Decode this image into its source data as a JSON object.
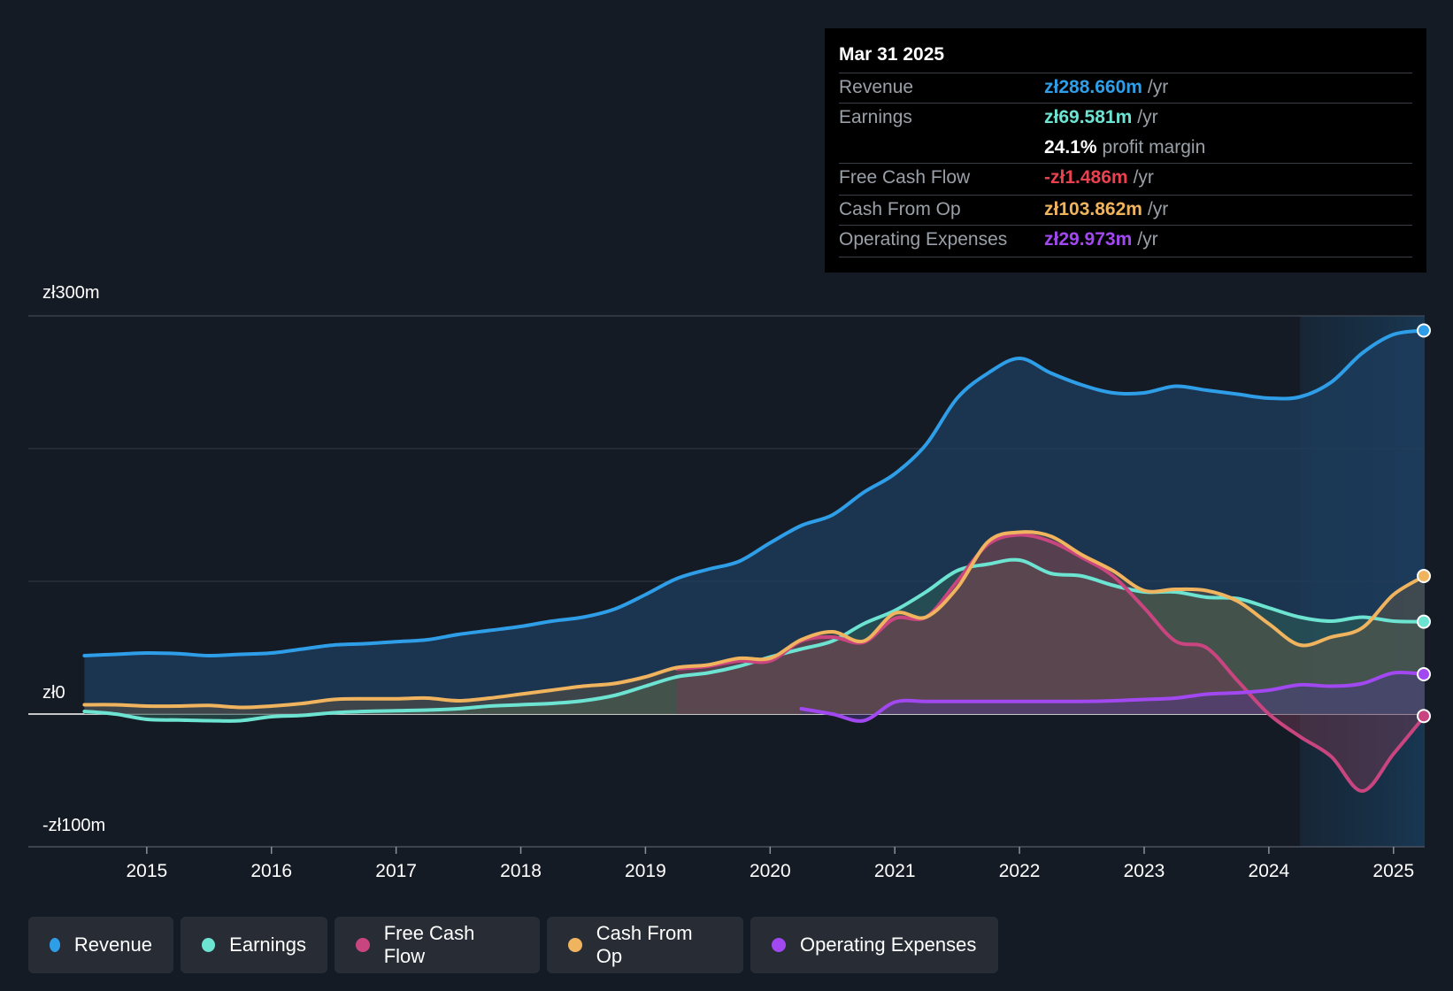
{
  "tooltip": {
    "date": "Mar 31 2025",
    "rows": [
      {
        "label": "Revenue",
        "value": "zł288.660m",
        "unit": "/yr",
        "color": "#2f9ee8"
      },
      {
        "label": "Earnings",
        "value": "zł69.581m",
        "unit": "/yr",
        "color": "#6de3d2"
      },
      {
        "label": "",
        "value": "24.1%",
        "unit": "profit margin",
        "color": "#ffffff"
      },
      {
        "label": "Free Cash Flow",
        "value": "-zł1.486m",
        "unit": "/yr",
        "color": "#e8414f"
      },
      {
        "label": "Cash From Op",
        "value": "zł103.862m",
        "unit": "/yr",
        "color": "#f0b35e"
      },
      {
        "label": "Operating Expenses",
        "value": "zł29.973m",
        "unit": "/yr",
        "color": "#a248f0"
      }
    ]
  },
  "legend": [
    {
      "label": "Revenue",
      "color": "#2f9ee8"
    },
    {
      "label": "Earnings",
      "color": "#6de3d2"
    },
    {
      "label": "Free Cash Flow",
      "color": "#c9457f"
    },
    {
      "label": "Cash From Op",
      "color": "#f0b35e"
    },
    {
      "label": "Operating Expenses",
      "color": "#a248f0"
    }
  ],
  "chart_data": {
    "type": "area",
    "currency": "zł",
    "ylim": [
      -100,
      300
    ],
    "ytick_labels": [
      "zł300m",
      "zł0",
      "-zł100m"
    ],
    "x_tick_labels": [
      "2015",
      "2016",
      "2017",
      "2018",
      "2019",
      "2020",
      "2021",
      "2022",
      "2023",
      "2024",
      "2025"
    ],
    "x_ticks": [
      2015,
      2016,
      2017,
      2018,
      2019,
      2020,
      2021,
      2022,
      2023,
      2024,
      2025
    ],
    "xlim": [
      2014.05,
      2025.25
    ],
    "highlight_start": 2024.25,
    "past_shade_start": 2019.25,
    "grid": true,
    "series": [
      {
        "name": "Revenue",
        "color": "#2f9ee8",
        "points": [
          [
            2014.5,
            44
          ],
          [
            2014.75,
            45
          ],
          [
            2015,
            46
          ],
          [
            2015.25,
            45.5
          ],
          [
            2015.5,
            44
          ],
          [
            2015.75,
            45
          ],
          [
            2016,
            46
          ],
          [
            2016.25,
            49
          ],
          [
            2016.5,
            52
          ],
          [
            2016.75,
            53
          ],
          [
            2017,
            54.5
          ],
          [
            2017.25,
            56
          ],
          [
            2017.5,
            60
          ],
          [
            2017.75,
            63
          ],
          [
            2018,
            66
          ],
          [
            2018.25,
            70
          ],
          [
            2018.5,
            73
          ],
          [
            2018.75,
            79
          ],
          [
            2019,
            90
          ],
          [
            2019.25,
            102
          ],
          [
            2019.5,
            109
          ],
          [
            2019.75,
            115
          ],
          [
            2020,
            129
          ],
          [
            2020.25,
            142
          ],
          [
            2020.5,
            150
          ],
          [
            2020.75,
            167
          ],
          [
            2021,
            181
          ],
          [
            2021.25,
            203
          ],
          [
            2021.5,
            238
          ],
          [
            2021.75,
            257
          ],
          [
            2022,
            268
          ],
          [
            2022.25,
            257
          ],
          [
            2022.5,
            248
          ],
          [
            2022.75,
            242
          ],
          [
            2023,
            242
          ],
          [
            2023.25,
            247
          ],
          [
            2023.5,
            244
          ],
          [
            2023.75,
            241
          ],
          [
            2024,
            238
          ],
          [
            2024.25,
            239
          ],
          [
            2024.5,
            250
          ],
          [
            2024.75,
            272
          ],
          [
            2025,
            286
          ],
          [
            2025.25,
            289
          ]
        ]
      },
      {
        "name": "Earnings",
        "color": "#6de3d2",
        "points": [
          [
            2014.5,
            2
          ],
          [
            2014.75,
            0
          ],
          [
            2015,
            -4
          ],
          [
            2015.25,
            -4.5
          ],
          [
            2015.5,
            -5
          ],
          [
            2015.75,
            -5
          ],
          [
            2016,
            -2
          ],
          [
            2016.25,
            -1
          ],
          [
            2016.5,
            1
          ],
          [
            2016.75,
            2
          ],
          [
            2017,
            2.5
          ],
          [
            2017.25,
            3
          ],
          [
            2017.5,
            4
          ],
          [
            2017.75,
            6
          ],
          [
            2018,
            7
          ],
          [
            2018.25,
            8
          ],
          [
            2018.5,
            10
          ],
          [
            2018.75,
            14
          ],
          [
            2019,
            21
          ],
          [
            2019.25,
            28
          ],
          [
            2019.5,
            31
          ],
          [
            2019.75,
            36
          ],
          [
            2020,
            43
          ],
          [
            2020.25,
            49
          ],
          [
            2020.5,
            55
          ],
          [
            2020.75,
            68
          ],
          [
            2021,
            78
          ],
          [
            2021.25,
            92
          ],
          [
            2021.5,
            108
          ],
          [
            2021.75,
            113
          ],
          [
            2022,
            116
          ],
          [
            2022.25,
            106
          ],
          [
            2022.5,
            104
          ],
          [
            2022.75,
            97
          ],
          [
            2023,
            92
          ],
          [
            2023.25,
            92
          ],
          [
            2023.5,
            88
          ],
          [
            2023.75,
            87
          ],
          [
            2024,
            80
          ],
          [
            2024.25,
            73
          ],
          [
            2024.5,
            70
          ],
          [
            2024.75,
            73
          ],
          [
            2025,
            70
          ],
          [
            2025.25,
            69.6
          ]
        ]
      },
      {
        "name": "Free Cash Flow",
        "color": "#c9457f",
        "points": [
          [
            2019.25,
            34
          ],
          [
            2019.5,
            36
          ],
          [
            2019.75,
            40
          ],
          [
            2020,
            40
          ],
          [
            2020.25,
            55
          ],
          [
            2020.5,
            58
          ],
          [
            2020.75,
            54
          ],
          [
            2021,
            72
          ],
          [
            2021.25,
            73
          ],
          [
            2021.5,
            100
          ],
          [
            2021.75,
            128
          ],
          [
            2022,
            135
          ],
          [
            2022.25,
            130
          ],
          [
            2022.5,
            118
          ],
          [
            2022.75,
            104
          ],
          [
            2023,
            80
          ],
          [
            2023.25,
            55
          ],
          [
            2023.5,
            50
          ],
          [
            2023.75,
            25
          ],
          [
            2024,
            0
          ],
          [
            2024.25,
            -17
          ],
          [
            2024.5,
            -32
          ],
          [
            2024.75,
            -58
          ],
          [
            2025,
            -30
          ],
          [
            2025.25,
            -1.5
          ]
        ]
      },
      {
        "name": "Cash From Op",
        "color": "#f0b35e",
        "points": [
          [
            2014.5,
            7
          ],
          [
            2014.75,
            7
          ],
          [
            2015,
            6
          ],
          [
            2015.25,
            6
          ],
          [
            2015.5,
            6.5
          ],
          [
            2015.75,
            5
          ],
          [
            2016,
            6
          ],
          [
            2016.25,
            8
          ],
          [
            2016.5,
            11
          ],
          [
            2016.75,
            11.5
          ],
          [
            2017,
            11.5
          ],
          [
            2017.25,
            12
          ],
          [
            2017.5,
            10
          ],
          [
            2017.75,
            12
          ],
          [
            2018,
            15
          ],
          [
            2018.25,
            18
          ],
          [
            2018.5,
            21
          ],
          [
            2018.75,
            23
          ],
          [
            2019,
            28
          ],
          [
            2019.25,
            35
          ],
          [
            2019.5,
            37
          ],
          [
            2019.75,
            42
          ],
          [
            2020,
            42
          ],
          [
            2020.25,
            56
          ],
          [
            2020.5,
            62
          ],
          [
            2020.75,
            55
          ],
          [
            2021,
            76
          ],
          [
            2021.25,
            73
          ],
          [
            2021.5,
            95
          ],
          [
            2021.75,
            130
          ],
          [
            2022,
            137
          ],
          [
            2022.25,
            134
          ],
          [
            2022.5,
            120
          ],
          [
            2022.75,
            108
          ],
          [
            2023,
            93
          ],
          [
            2023.25,
            94
          ],
          [
            2023.5,
            93
          ],
          [
            2023.75,
            85
          ],
          [
            2024,
            68
          ],
          [
            2024.25,
            52
          ],
          [
            2024.5,
            58
          ],
          [
            2024.75,
            65
          ],
          [
            2025,
            90
          ],
          [
            2025.25,
            104
          ]
        ]
      },
      {
        "name": "Operating Expenses",
        "color": "#a248f0",
        "points": [
          [
            2020.25,
            4
          ],
          [
            2020.5,
            0
          ],
          [
            2020.75,
            -5
          ],
          [
            2021,
            9
          ],
          [
            2021.25,
            9.5
          ],
          [
            2021.5,
            9.5
          ],
          [
            2021.75,
            9.5
          ],
          [
            2022,
            9.5
          ],
          [
            2022.25,
            9.5
          ],
          [
            2022.5,
            9.5
          ],
          [
            2022.75,
            10
          ],
          [
            2023,
            11
          ],
          [
            2023.25,
            12
          ],
          [
            2023.5,
            15
          ],
          [
            2023.75,
            16
          ],
          [
            2024,
            18
          ],
          [
            2024.25,
            22
          ],
          [
            2024.5,
            21
          ],
          [
            2024.75,
            23
          ],
          [
            2025,
            31
          ],
          [
            2025.25,
            30
          ]
        ]
      }
    ]
  }
}
